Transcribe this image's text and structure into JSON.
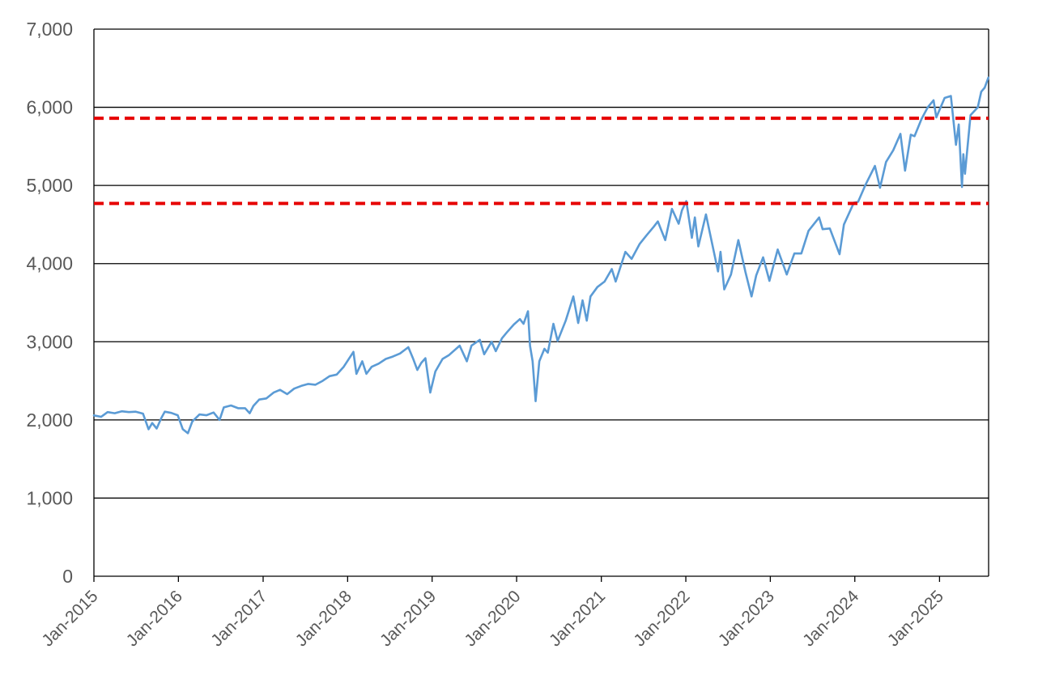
{
  "chart_data": {
    "type": "line",
    "title": "",
    "xlabel": "",
    "ylabel": "",
    "ylim": [
      0,
      7000
    ],
    "xlim": [
      "2015-01-01",
      "2025-08-01"
    ],
    "yticks": [
      {
        "value": 0,
        "label": "0"
      },
      {
        "value": 1000,
        "label": "1,000"
      },
      {
        "value": 2000,
        "label": "2,000"
      },
      {
        "value": 3000,
        "label": "3,000"
      },
      {
        "value": 4000,
        "label": "4,000"
      },
      {
        "value": 5000,
        "label": "5,000"
      },
      {
        "value": 6000,
        "label": "6,000"
      },
      {
        "value": 7000,
        "label": "7,000"
      }
    ],
    "xticks": [
      {
        "date": "2015-01-01",
        "label": "Jan-2015"
      },
      {
        "date": "2016-01-01",
        "label": "Jan-2016"
      },
      {
        "date": "2017-01-01",
        "label": "Jan-2017"
      },
      {
        "date": "2018-01-01",
        "label": "Jan-2018"
      },
      {
        "date": "2019-01-01",
        "label": "Jan-2019"
      },
      {
        "date": "2020-01-01",
        "label": "Jan-2020"
      },
      {
        "date": "2021-01-01",
        "label": "Jan-2021"
      },
      {
        "date": "2022-01-01",
        "label": "Jan-2022"
      },
      {
        "date": "2023-01-01",
        "label": "Jan-2023"
      },
      {
        "date": "2024-01-01",
        "label": "Jan-2024"
      },
      {
        "date": "2025-01-01",
        "label": "Jan-2025"
      }
    ],
    "grid": "horizontal",
    "legend": "none",
    "series": [
      {
        "color": "#5b9bd5",
        "points": [
          [
            "2015-01-01",
            2058
          ],
          [
            "2015-02-01",
            2040
          ],
          [
            "2015-03-01",
            2100
          ],
          [
            "2015-04-01",
            2085
          ],
          [
            "2015-05-01",
            2110
          ],
          [
            "2015-06-01",
            2100
          ],
          [
            "2015-07-01",
            2105
          ],
          [
            "2015-08-01",
            2080
          ],
          [
            "2015-08-25",
            1880
          ],
          [
            "2015-09-10",
            1960
          ],
          [
            "2015-09-29",
            1890
          ],
          [
            "2015-10-20",
            2030
          ],
          [
            "2015-11-03",
            2105
          ],
          [
            "2015-12-01",
            2090
          ],
          [
            "2015-12-29",
            2060
          ],
          [
            "2016-01-20",
            1880
          ],
          [
            "2016-02-11",
            1830
          ],
          [
            "2016-03-01",
            1980
          ],
          [
            "2016-04-01",
            2070
          ],
          [
            "2016-05-01",
            2060
          ],
          [
            "2016-06-01",
            2095
          ],
          [
            "2016-06-27",
            2000
          ],
          [
            "2016-07-15",
            2160
          ],
          [
            "2016-08-15",
            2185
          ],
          [
            "2016-09-15",
            2150
          ],
          [
            "2016-10-15",
            2150
          ],
          [
            "2016-11-04",
            2085
          ],
          [
            "2016-11-20",
            2180
          ],
          [
            "2016-12-15",
            2260
          ],
          [
            "2017-01-15",
            2275
          ],
          [
            "2017-02-15",
            2350
          ],
          [
            "2017-03-15",
            2385
          ],
          [
            "2017-04-15",
            2330
          ],
          [
            "2017-05-15",
            2400
          ],
          [
            "2017-06-15",
            2435
          ],
          [
            "2017-07-15",
            2460
          ],
          [
            "2017-08-15",
            2450
          ],
          [
            "2017-09-15",
            2500
          ],
          [
            "2017-10-15",
            2560
          ],
          [
            "2017-11-15",
            2580
          ],
          [
            "2017-12-15",
            2680
          ],
          [
            "2018-01-26",
            2870
          ],
          [
            "2018-02-08",
            2590
          ],
          [
            "2018-03-05",
            2750
          ],
          [
            "2018-03-23",
            2590
          ],
          [
            "2018-04-15",
            2680
          ],
          [
            "2018-05-15",
            2720
          ],
          [
            "2018-06-15",
            2780
          ],
          [
            "2018-07-15",
            2810
          ],
          [
            "2018-08-15",
            2850
          ],
          [
            "2018-09-20",
            2930
          ],
          [
            "2018-10-10",
            2790
          ],
          [
            "2018-10-29",
            2640
          ],
          [
            "2018-11-15",
            2730
          ],
          [
            "2018-12-03",
            2790
          ],
          [
            "2018-12-24",
            2350
          ],
          [
            "2019-01-15",
            2620
          ],
          [
            "2019-02-15",
            2780
          ],
          [
            "2019-03-15",
            2830
          ],
          [
            "2019-04-30",
            2950
          ],
          [
            "2019-05-31",
            2750
          ],
          [
            "2019-06-20",
            2950
          ],
          [
            "2019-07-26",
            3025
          ],
          [
            "2019-08-14",
            2840
          ],
          [
            "2019-09-15",
            3000
          ],
          [
            "2019-10-03",
            2880
          ],
          [
            "2019-10-30",
            3045
          ],
          [
            "2019-11-20",
            3120
          ],
          [
            "2019-12-20",
            3220
          ],
          [
            "2020-01-15",
            3290
          ],
          [
            "2020-01-31",
            3230
          ],
          [
            "2020-02-19",
            3390
          ],
          [
            "2020-02-28",
            2950
          ],
          [
            "2020-03-10",
            2750
          ],
          [
            "2020-03-23",
            2240
          ],
          [
            "2020-04-08",
            2750
          ],
          [
            "2020-04-30",
            2910
          ],
          [
            "2020-05-15",
            2860
          ],
          [
            "2020-06-08",
            3230
          ],
          [
            "2020-06-26",
            3010
          ],
          [
            "2020-07-31",
            3270
          ],
          [
            "2020-09-02",
            3580
          ],
          [
            "2020-09-23",
            3240
          ],
          [
            "2020-10-12",
            3530
          ],
          [
            "2020-10-30",
            3270
          ],
          [
            "2020-11-15",
            3580
          ],
          [
            "2020-12-15",
            3700
          ],
          [
            "2021-01-15",
            3770
          ],
          [
            "2021-02-15",
            3930
          ],
          [
            "2021-03-04",
            3770
          ],
          [
            "2021-04-15",
            4150
          ],
          [
            "2021-05-12",
            4060
          ],
          [
            "2021-06-15",
            4250
          ],
          [
            "2021-07-15",
            4360
          ],
          [
            "2021-08-15",
            4470
          ],
          [
            "2021-09-02",
            4540
          ],
          [
            "2021-10-04",
            4300
          ],
          [
            "2021-11-02",
            4700
          ],
          [
            "2021-12-01",
            4510
          ],
          [
            "2021-12-15",
            4680
          ],
          [
            "2022-01-03",
            4800
          ],
          [
            "2022-01-27",
            4330
          ],
          [
            "2022-02-09",
            4590
          ],
          [
            "2022-02-24",
            4220
          ],
          [
            "2022-03-29",
            4630
          ],
          [
            "2022-04-15",
            4390
          ],
          [
            "2022-05-20",
            3900
          ],
          [
            "2022-05-31",
            4150
          ],
          [
            "2022-06-16",
            3670
          ],
          [
            "2022-07-15",
            3860
          ],
          [
            "2022-08-16",
            4300
          ],
          [
            "2022-09-15",
            3900
          ],
          [
            "2022-10-12",
            3580
          ],
          [
            "2022-11-01",
            3850
          ],
          [
            "2022-12-01",
            4080
          ],
          [
            "2022-12-28",
            3780
          ],
          [
            "2023-02-02",
            4180
          ],
          [
            "2023-03-13",
            3860
          ],
          [
            "2023-04-15",
            4130
          ],
          [
            "2023-05-15",
            4130
          ],
          [
            "2023-06-15",
            4420
          ],
          [
            "2023-07-31",
            4590
          ],
          [
            "2023-08-15",
            4440
          ],
          [
            "2023-09-15",
            4450
          ],
          [
            "2023-10-27",
            4120
          ],
          [
            "2023-11-15",
            4500
          ],
          [
            "2023-12-28",
            4780
          ],
          [
            "2024-01-15",
            4790
          ],
          [
            "2024-02-15",
            5000
          ],
          [
            "2024-03-28",
            5250
          ],
          [
            "2024-04-19",
            4970
          ],
          [
            "2024-05-15",
            5300
          ],
          [
            "2024-06-15",
            5450
          ],
          [
            "2024-07-16",
            5660
          ],
          [
            "2024-08-05",
            5190
          ],
          [
            "2024-08-30",
            5650
          ],
          [
            "2024-09-15",
            5630
          ],
          [
            "2024-10-15",
            5850
          ],
          [
            "2024-11-11",
            6000
          ],
          [
            "2024-12-06",
            6090
          ],
          [
            "2024-12-18",
            5870
          ],
          [
            "2025-01-23",
            6120
          ],
          [
            "2025-02-19",
            6145
          ],
          [
            "2025-03-13",
            5520
          ],
          [
            "2025-03-25",
            5780
          ],
          [
            "2025-04-08",
            4980
          ],
          [
            "2025-04-14",
            5400
          ],
          [
            "2025-04-21",
            5150
          ],
          [
            "2025-05-15",
            5900
          ],
          [
            "2025-06-15",
            6000
          ],
          [
            "2025-06-30",
            6200
          ],
          [
            "2025-07-15",
            6250
          ],
          [
            "2025-07-31",
            6380
          ]
        ]
      }
    ],
    "reference_lines": [
      {
        "value": 5860,
        "color": "#e60000",
        "style": "dashed"
      },
      {
        "value": 4770,
        "color": "#e60000",
        "style": "dashed"
      }
    ]
  }
}
